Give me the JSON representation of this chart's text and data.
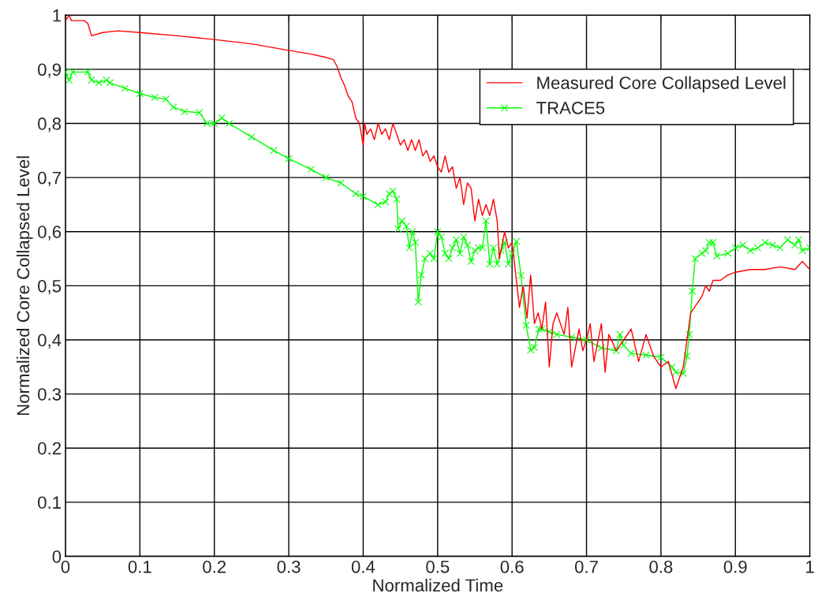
{
  "chart_data": {
    "type": "line",
    "xlabel": "Normalized Time",
    "ylabel": "Normalized Core Collapsed Level",
    "xlim": [
      0,
      1
    ],
    "ylim": [
      0,
      1
    ],
    "xticks": [
      0,
      0.1,
      0.2,
      0.3,
      0.4,
      0.5,
      0.6,
      0.7,
      0.8,
      0.9,
      1
    ],
    "yticks": [
      0,
      0.1,
      0.2,
      0.3,
      {
        "value": 0.4,
        "label": "0,4"
      },
      {
        "value": 0.5,
        "label": "0,5"
      },
      {
        "value": 0.6,
        "label": "0,6"
      },
      {
        "value": 0.7,
        "label": "0,7"
      },
      {
        "value": 0.8,
        "label": "0,8"
      },
      {
        "value": 0.9,
        "label": "0,9"
      },
      1
    ],
    "grid": true,
    "legend": "top right",
    "series": [
      {
        "name": "Measured Core Collapsed Level",
        "color": "#ff0000",
        "marker": "none",
        "x": [
          0,
          0.005,
          0.008,
          0.015,
          0.025,
          0.03,
          0.035,
          0.05,
          0.07,
          0.1,
          0.15,
          0.2,
          0.25,
          0.3,
          0.33,
          0.35,
          0.36,
          0.365,
          0.37,
          0.375,
          0.38,
          0.385,
          0.39,
          0.395,
          0.4,
          0.402,
          0.405,
          0.41,
          0.415,
          0.42,
          0.425,
          0.43,
          0.435,
          0.44,
          0.445,
          0.45,
          0.455,
          0.46,
          0.465,
          0.47,
          0.475,
          0.48,
          0.485,
          0.49,
          0.495,
          0.5,
          0.505,
          0.51,
          0.515,
          0.52,
          0.525,
          0.53,
          0.535,
          0.54,
          0.545,
          0.55,
          0.555,
          0.56,
          0.565,
          0.57,
          0.575,
          0.58,
          0.583,
          0.59,
          0.595,
          0.6,
          0.605,
          0.61,
          0.615,
          0.62,
          0.625,
          0.63,
          0.635,
          0.64,
          0.645,
          0.65,
          0.655,
          0.66,
          0.67,
          0.675,
          0.68,
          0.69,
          0.695,
          0.7,
          0.705,
          0.71,
          0.72,
          0.725,
          0.73,
          0.74,
          0.75,
          0.76,
          0.77,
          0.78,
          0.79,
          0.8,
          0.81,
          0.82,
          0.825,
          0.83,
          0.835,
          0.84,
          0.845,
          0.85,
          0.855,
          0.86,
          0.865,
          0.87,
          0.88,
          0.89,
          0.9,
          0.92,
          0.94,
          0.96,
          0.98,
          0.99,
          1.0
        ],
        "values": [
          0.99,
          1.0,
          0.99,
          0.99,
          0.99,
          0.985,
          0.962,
          0.968,
          0.971,
          0.968,
          0.962,
          0.955,
          0.947,
          0.935,
          0.928,
          0.922,
          0.918,
          0.905,
          0.885,
          0.87,
          0.85,
          0.84,
          0.81,
          0.8,
          0.76,
          0.8,
          0.78,
          0.79,
          0.77,
          0.8,
          0.78,
          0.79,
          0.77,
          0.8,
          0.78,
          0.76,
          0.77,
          0.75,
          0.77,
          0.75,
          0.77,
          0.74,
          0.75,
          0.73,
          0.74,
          0.72,
          0.71,
          0.74,
          0.71,
          0.72,
          0.68,
          0.7,
          0.65,
          0.69,
          0.68,
          0.62,
          0.66,
          0.63,
          0.65,
          0.63,
          0.66,
          0.62,
          0.55,
          0.6,
          0.57,
          0.58,
          0.52,
          0.46,
          0.5,
          0.44,
          0.52,
          0.43,
          0.45,
          0.42,
          0.47,
          0.35,
          0.43,
          0.45,
          0.41,
          0.46,
          0.35,
          0.42,
          0.38,
          0.4,
          0.43,
          0.36,
          0.43,
          0.34,
          0.41,
          0.38,
          0.4,
          0.42,
          0.36,
          0.41,
          0.37,
          0.35,
          0.36,
          0.31,
          0.33,
          0.35,
          0.4,
          0.45,
          0.46,
          0.47,
          0.48,
          0.5,
          0.49,
          0.51,
          0.51,
          0.52,
          0.525,
          0.53,
          0.53,
          0.535,
          0.53,
          0.545,
          0.53
        ]
      },
      {
        "name": "TRACE5",
        "color": "#00ff00",
        "marker": "cross",
        "x": [
          0,
          0.005,
          0.01,
          0.03,
          0.035,
          0.045,
          0.055,
          0.06,
          0.08,
          0.1,
          0.12,
          0.135,
          0.145,
          0.16,
          0.18,
          0.19,
          0.2,
          0.21,
          0.22,
          0.25,
          0.28,
          0.3,
          0.33,
          0.35,
          0.37,
          0.39,
          0.4,
          0.42,
          0.43,
          0.435,
          0.44,
          0.445,
          0.447,
          0.452,
          0.458,
          0.462,
          0.466,
          0.47,
          0.474,
          0.478,
          0.483,
          0.49,
          0.495,
          0.5,
          0.505,
          0.51,
          0.515,
          0.52,
          0.525,
          0.53,
          0.535,
          0.54,
          0.545,
          0.55,
          0.555,
          0.56,
          0.565,
          0.57,
          0.575,
          0.58,
          0.585,
          0.59,
          0.595,
          0.6,
          0.606,
          0.612,
          0.619,
          0.625,
          0.63,
          0.636,
          0.64,
          0.65,
          0.66,
          0.68,
          0.7,
          0.72,
          0.74,
          0.745,
          0.75,
          0.76,
          0.78,
          0.8,
          0.815,
          0.82,
          0.83,
          0.835,
          0.838,
          0.842,
          0.846,
          0.855,
          0.86,
          0.865,
          0.87,
          0.875,
          0.89,
          0.9,
          0.91,
          0.92,
          0.93,
          0.94,
          0.95,
          0.96,
          0.97,
          0.98,
          0.985,
          0.99,
          1.0
        ],
        "values": [
          0.895,
          0.88,
          0.895,
          0.895,
          0.88,
          0.875,
          0.88,
          0.875,
          0.865,
          0.855,
          0.848,
          0.845,
          0.83,
          0.822,
          0.82,
          0.8,
          0.8,
          0.81,
          0.8,
          0.775,
          0.75,
          0.735,
          0.715,
          0.7,
          0.69,
          0.67,
          0.665,
          0.65,
          0.655,
          0.67,
          0.675,
          0.66,
          0.605,
          0.62,
          0.61,
          0.57,
          0.6,
          0.58,
          0.47,
          0.52,
          0.55,
          0.56,
          0.55,
          0.6,
          0.59,
          0.56,
          0.55,
          0.57,
          0.585,
          0.56,
          0.59,
          0.575,
          0.545,
          0.565,
          0.57,
          0.57,
          0.62,
          0.54,
          0.57,
          0.54,
          0.565,
          0.58,
          0.54,
          0.56,
          0.582,
          0.519,
          0.427,
          0.381,
          0.386,
          0.42,
          0.42,
          0.415,
          0.41,
          0.405,
          0.4,
          0.385,
          0.38,
          0.41,
          0.39,
          0.375,
          0.372,
          0.368,
          0.35,
          0.34,
          0.338,
          0.37,
          0.41,
          0.49,
          0.55,
          0.56,
          0.565,
          0.58,
          0.58,
          0.555,
          0.56,
          0.57,
          0.575,
          0.565,
          0.57,
          0.58,
          0.575,
          0.57,
          0.585,
          0.575,
          0.585,
          0.565,
          0.57
        ]
      }
    ]
  }
}
